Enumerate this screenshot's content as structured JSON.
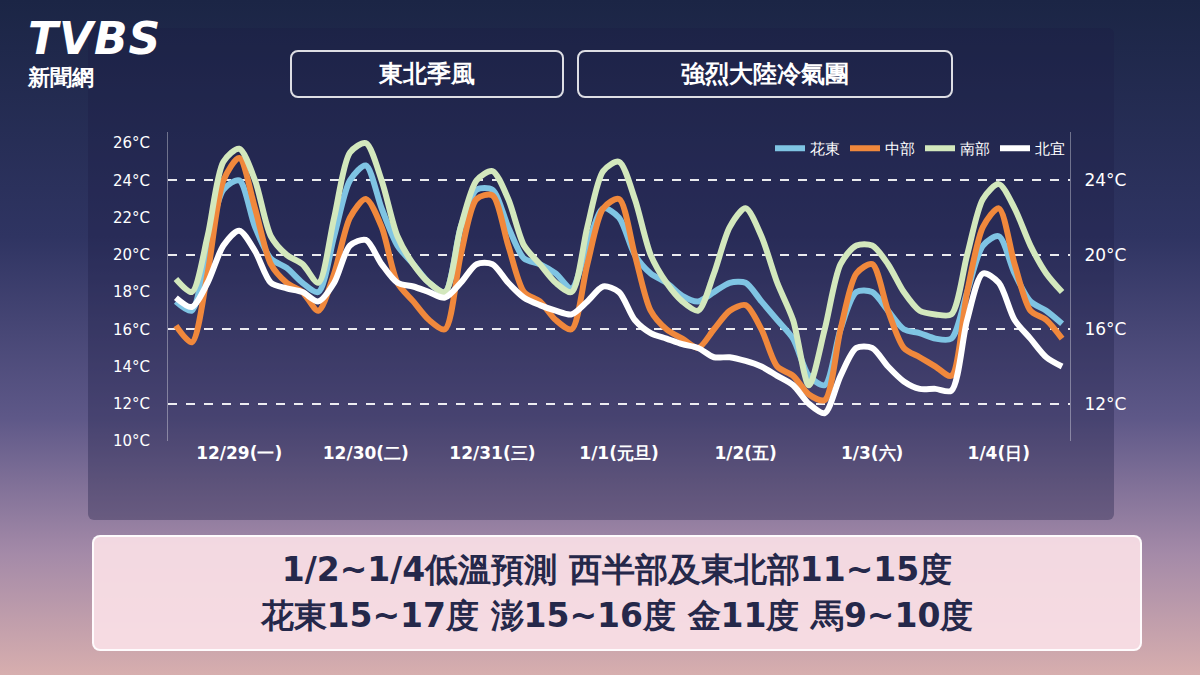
{
  "logo": {
    "brand": "TVBS",
    "sub": "新聞網"
  },
  "chart_data": {
    "type": "line",
    "annotations": [
      "東北季風",
      "強烈大陸冷氣團"
    ],
    "caption": [
      "1/2~1/4低溫預測 西半部及東北部11~15度",
      "花東15~17度  澎15~16度 金11度  馬9~10度"
    ],
    "categories": [
      null,
      null,
      null,
      null,
      "12/29(一)",
      null,
      null,
      null,
      null,
      null,
      null,
      null,
      "12/30(二)",
      null,
      null,
      null,
      null,
      null,
      null,
      null,
      "12/31(三)",
      null,
      null,
      null,
      null,
      null,
      null,
      null,
      "1/1(元旦)",
      null,
      null,
      null,
      null,
      null,
      null,
      null,
      "1/2(五)",
      null,
      null,
      null,
      null,
      null,
      null,
      null,
      "1/3(六)",
      null,
      null,
      null,
      null,
      null,
      null,
      null,
      "1/4(日)",
      null,
      null,
      null,
      null
    ],
    "series": [
      {
        "name": "花東",
        "color": "#7fc4e3",
        "values": [
          17.5,
          17,
          20.5,
          23.5,
          24,
          21.5,
          19.8,
          19.3,
          18.5,
          18,
          21,
          24,
          24.8,
          22.5,
          20.5,
          19.5,
          18.5,
          18,
          21.5,
          23.5,
          23.5,
          21.5,
          19.8,
          19.5,
          19,
          18.2,
          20.5,
          22.5,
          22,
          20,
          19,
          18.5,
          17.8,
          17.5,
          18,
          18.5,
          18.5,
          17.5,
          16.5,
          15.5,
          13.5,
          13,
          16,
          18,
          18,
          17,
          16,
          15.8,
          15.5,
          15.5,
          18,
          20.5,
          21,
          19,
          17.5,
          17,
          16.3
        ]
      },
      {
        "name": "中部",
        "color": "#f0883c",
        "values": [
          16.2,
          15.3,
          19,
          24,
          25.2,
          22.5,
          19.5,
          18.5,
          18,
          17,
          19,
          22,
          23,
          21.5,
          18.5,
          17.5,
          16.5,
          16,
          20,
          23,
          23.2,
          20.5,
          18,
          17.5,
          16.5,
          16,
          19.5,
          22.5,
          23,
          20,
          17,
          16,
          15.5,
          15,
          16,
          17,
          17.3,
          16,
          14,
          13.5,
          12.5,
          12.2,
          16,
          19,
          19.5,
          17,
          15,
          14.5,
          14,
          13.5,
          18,
          21.5,
          22.5,
          19.5,
          17,
          16.5,
          15.5
        ]
      },
      {
        "name": "南部",
        "color": "#d3e8bd",
        "values": [
          18.7,
          18,
          21,
          25,
          25.7,
          24,
          21,
          20,
          19.5,
          18.5,
          22,
          25.5,
          26,
          24,
          21,
          19.5,
          18.5,
          18,
          21.5,
          24,
          24.5,
          23,
          20.5,
          19.5,
          18.5,
          18,
          21.5,
          24.5,
          25,
          23,
          20,
          18.5,
          17.5,
          17,
          19,
          21.5,
          22.5,
          21,
          18.5,
          16.5,
          13,
          16,
          19.5,
          20.5,
          20.5,
          19.5,
          18,
          17,
          16.8,
          16.8,
          20,
          23,
          23.8,
          22.5,
          20.5,
          19,
          18
        ]
      },
      {
        "name": "北宜",
        "color": "#ffffff",
        "values": [
          17.7,
          17.2,
          18.5,
          20.5,
          21.3,
          20.2,
          18.5,
          18.2,
          18,
          17.5,
          18.5,
          20.5,
          20.8,
          19.5,
          18.5,
          18.3,
          18,
          17.7,
          18.5,
          19.5,
          19.5,
          18.5,
          17.7,
          17.3,
          17,
          16.8,
          17.5,
          18.3,
          18,
          16.5,
          15.8,
          15.5,
          15.2,
          15,
          14.5,
          14.5,
          14.3,
          14,
          13.5,
          13,
          12,
          11.5,
          13.5,
          15,
          15,
          14,
          13.2,
          12.8,
          12.8,
          12.7,
          16.5,
          19,
          18.5,
          16.5,
          15.5,
          14.5,
          14
        ]
      }
    ],
    "ylim": [
      10,
      26.6
    ],
    "yticks": [
      {
        "value": 10,
        "label": "10°C"
      },
      {
        "value": 12,
        "label": "12°C"
      },
      {
        "value": 14,
        "label": "14°C"
      },
      {
        "value": 16,
        "label": "16°C"
      },
      {
        "value": 18,
        "label": "18°C"
      },
      {
        "value": 20,
        "label": "20°C"
      },
      {
        "value": 22,
        "label": "22°C"
      },
      {
        "value": 24,
        "label": "24°C"
      },
      {
        "value": 26,
        "label": "26°C"
      }
    ],
    "y2lim": [
      10,
      26.6
    ],
    "y2ticks": [
      {
        "value": 12,
        "label": "12°C"
      },
      {
        "value": 16,
        "label": "16°C"
      },
      {
        "value": 20,
        "label": "20°C"
      },
      {
        "value": 24,
        "label": "24°C"
      }
    ],
    "grid": true,
    "legend": "top right"
  }
}
